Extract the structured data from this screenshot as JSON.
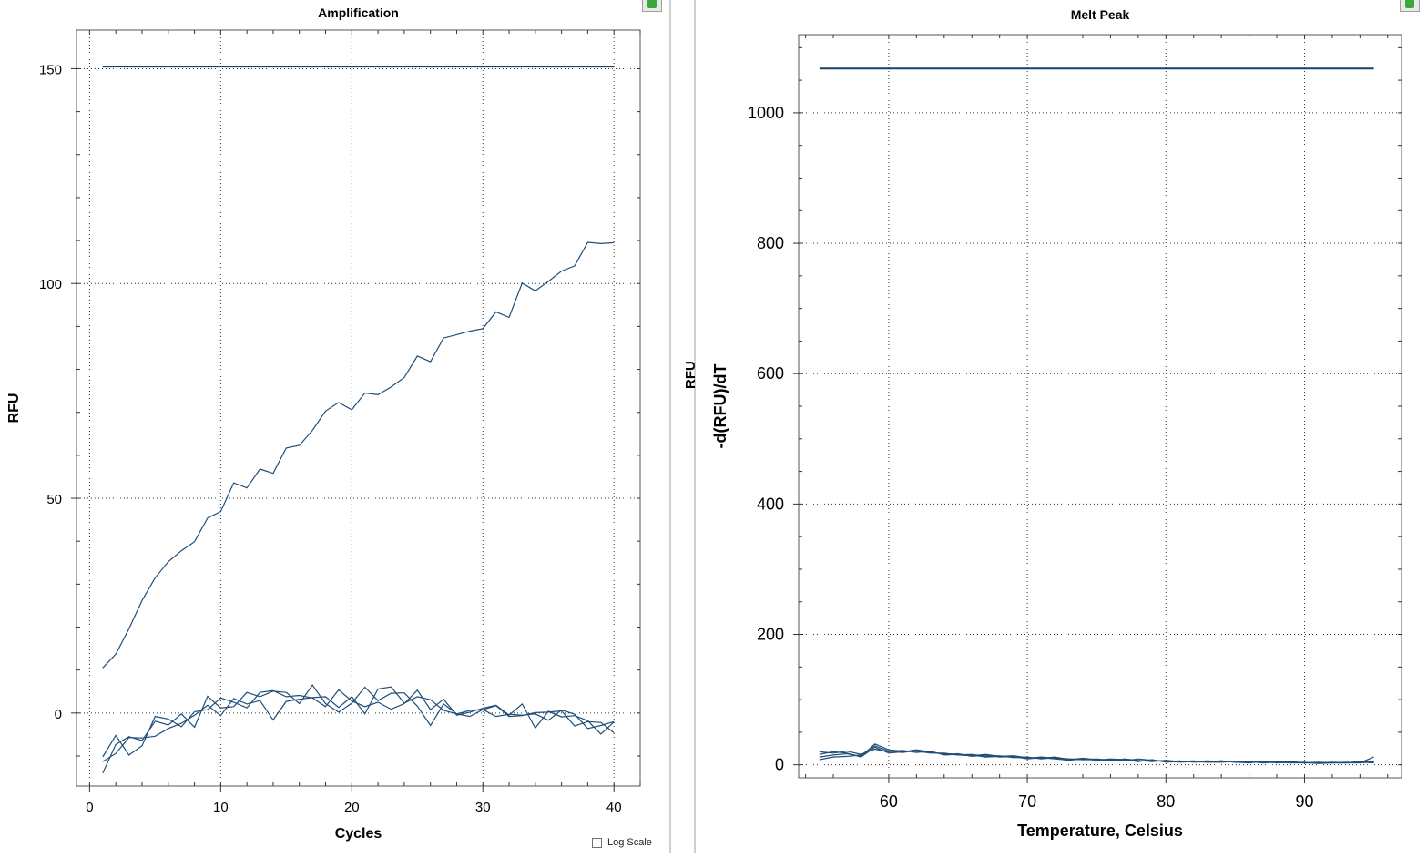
{
  "amplification": {
    "title": "Amplification",
    "xlabel": "Cycles",
    "ylabel": "RFU",
    "x_ticks": [
      "0",
      "10",
      "20",
      "30",
      "40"
    ],
    "y_ticks": [
      "0",
      "50",
      "100",
      "150"
    ],
    "log_scale_label": "Log Scale"
  },
  "melt_peak": {
    "title": "Melt Peak",
    "xlabel": "Temperature, Celsius",
    "ylabel": "-d(RFU)/dT",
    "x_ticks": [
      "60",
      "70",
      "80",
      "90"
    ],
    "y_ticks": [
      "0",
      "200",
      "400",
      "600",
      "800",
      "1000"
    ]
  },
  "splitter_text": "RFU",
  "line_color": "#1f4e79",
  "threshold_color": "#14436b",
  "chart_data": [
    {
      "type": "line",
      "title": "Amplification",
      "xlabel": "Cycles",
      "ylabel": "RFU",
      "xlim": [
        -1,
        42
      ],
      "ylim": [
        -17,
        159
      ],
      "grid": true,
      "threshold": {
        "value": 150.5,
        "x_range": [
          1,
          40
        ]
      },
      "series": [
        {
          "x": [
            1,
            2,
            3,
            4,
            5,
            6,
            7,
            8,
            9,
            10,
            11,
            12,
            13,
            14,
            15,
            16,
            17,
            18,
            19,
            20,
            21,
            22,
            23,
            24,
            25,
            26,
            27,
            28,
            29,
            30,
            31,
            32,
            33,
            34,
            35,
            36,
            37,
            38,
            39,
            40
          ],
          "values": [
            10.5,
            13.7,
            19.6,
            26.2,
            31.5,
            35.2,
            37.8,
            39.9,
            45.4,
            46.9,
            53.6,
            52.4,
            56.8,
            55.8,
            61.7,
            62.3,
            65.8,
            70.3,
            72.3,
            70.6,
            74.5,
            74.1,
            75.9,
            78.1,
            83.1,
            81.8,
            87.3,
            88.1,
            88.9,
            89.5,
            93.4,
            92.1,
            100.1,
            98.3,
            100.5,
            102.9,
            104.1,
            109.6,
            109.3,
            109.5
          ]
        },
        {
          "x": [
            1,
            2,
            3,
            4,
            5,
            6,
            7,
            8,
            9,
            10,
            11,
            12,
            13,
            14,
            15,
            16,
            17,
            18,
            19,
            20,
            21,
            22,
            23,
            24,
            25,
            26,
            27,
            28,
            29,
            30,
            31,
            32,
            33,
            34,
            35,
            36,
            37,
            38,
            39,
            40
          ],
          "values": [
            -10.2,
            -5.2,
            -9.8,
            -7.6,
            -0.8,
            -1.4,
            -3.2,
            0.3,
            0.8,
            3.5,
            2.5,
            1.2,
            4.8,
            5.2,
            3.8,
            4.1,
            3.5,
            1.5,
            5.4,
            2.8,
            1.5,
            2.5,
            0.9,
            2.2,
            5.3,
            0.8,
            3.2,
            -0.5,
            0.2,
            1.1,
            1.8,
            -0.5,
            2.1,
            -3.5,
            0.4,
            -0.9,
            -0.6,
            -1.8,
            -4.9,
            -2.1
          ]
        },
        {
          "x": [
            1,
            2,
            3,
            4,
            5,
            6,
            7,
            8,
            9,
            10,
            11,
            12,
            13,
            14,
            15,
            16,
            17,
            18,
            19,
            20,
            21,
            22,
            23,
            24,
            25,
            26,
            27,
            28,
            29,
            30,
            31,
            32,
            33,
            34,
            35,
            36,
            37,
            38,
            39,
            40
          ],
          "values": [
            -14.0,
            -7.3,
            -5.5,
            -6.4,
            -1.9,
            -2.8,
            -0.2,
            -3.3,
            3.9,
            1.2,
            1.5,
            4.8,
            3.8,
            5.1,
            4.8,
            2.2,
            6.5,
            2.2,
            0.2,
            2.3,
            6.0,
            2.9,
            4.6,
            4.7,
            1.6,
            -2.9,
            2.1,
            -0.2,
            0.6,
            0.8,
            1.7,
            -0.8,
            -0.6,
            0.1,
            0.2,
            0.5,
            -3.0,
            -2.0,
            -2.2,
            -4.6
          ]
        },
        {
          "x": [
            1,
            2,
            3,
            4,
            5,
            6,
            7,
            8,
            9,
            10,
            11,
            12,
            13,
            14,
            15,
            16,
            17,
            18,
            19,
            20,
            21,
            22,
            23,
            24,
            25,
            26,
            27,
            28,
            29,
            30,
            31,
            32,
            33,
            34,
            35,
            36,
            37,
            38,
            39,
            40
          ],
          "values": [
            -11.3,
            -9.4,
            -5.7,
            -5.8,
            -5.4,
            -3.6,
            -2.4,
            -0.5,
            1.8,
            -0.6,
            3.4,
            2.1,
            2.9,
            -1.6,
            2.7,
            3.2,
            3.6,
            3.8,
            1.3,
            3.8,
            -0.2,
            5.6,
            6.1,
            2.3,
            3.8,
            3.1,
            0.6,
            -0.2,
            -0.8,
            0.8,
            -0.8,
            -0.3,
            -0.5,
            -0.2,
            -1.7,
            0.7,
            -0.3,
            -3.6,
            -2.9,
            -2.0
          ]
        }
      ]
    },
    {
      "type": "line",
      "title": "Melt Peak",
      "xlabel": "Temperature, Celsius",
      "ylabel": "-d(RFU)/dT",
      "xlim": [
        53.5,
        97
      ],
      "ylim": [
        -20,
        1120
      ],
      "grid": true,
      "threshold": {
        "value": 1068,
        "x_range": [
          55,
          95
        ]
      },
      "series": [
        {
          "x": [
            55,
            56,
            57,
            58,
            59,
            60,
            61,
            62,
            63,
            64,
            65,
            66,
            67,
            68,
            69,
            70,
            71,
            72,
            73,
            74,
            75,
            76,
            77,
            78,
            79,
            80,
            81,
            82,
            83,
            84,
            85,
            86,
            87,
            88,
            89,
            90,
            91,
            92,
            93,
            94,
            95
          ],
          "values": [
            8,
            12,
            13,
            15,
            29,
            21,
            19,
            22,
            19,
            17,
            15,
            16,
            13,
            14,
            11,
            12,
            9,
            11,
            9,
            8,
            8,
            8,
            6,
            9,
            7,
            6,
            4,
            5,
            6,
            5,
            5,
            4,
            5,
            4,
            3,
            3,
            4,
            3,
            3,
            4,
            3
          ]
        },
        {
          "x": [
            55,
            56,
            57,
            58,
            59,
            60,
            61,
            62,
            63,
            64,
            65,
            66,
            67,
            68,
            69,
            70,
            71,
            72,
            73,
            74,
            75,
            76,
            77,
            78,
            79,
            80,
            81,
            82,
            83,
            84,
            85,
            86,
            87,
            88,
            89,
            90,
            91,
            92,
            93,
            94,
            95
          ],
          "values": [
            16,
            20,
            18,
            12,
            27,
            18,
            20,
            23,
            20,
            16,
            17,
            13,
            15,
            12,
            13,
            9,
            11,
            9,
            7,
            9,
            7,
            9,
            8,
            6,
            7,
            5,
            6,
            4,
            5,
            6,
            4,
            5,
            3,
            4,
            5,
            3,
            3,
            4,
            3,
            3,
            5
          ]
        },
        {
          "x": [
            55,
            56,
            57,
            58,
            59,
            60,
            61,
            62,
            63,
            64,
            65,
            66,
            67,
            68,
            69,
            70,
            71,
            72,
            73,
            74,
            75,
            76,
            77,
            78,
            79,
            80,
            81,
            82,
            83,
            84,
            85,
            86,
            87,
            88,
            89,
            90,
            91,
            92,
            93,
            94,
            95
          ],
          "values": [
            12,
            15,
            17,
            13,
            32,
            23,
            21,
            21,
            18,
            18,
            15,
            14,
            16,
            13,
            12,
            10,
            12,
            10,
            9,
            8,
            9,
            7,
            8,
            5,
            8,
            4,
            5,
            5,
            4,
            6,
            4,
            3,
            5,
            3,
            4,
            3,
            3,
            3,
            4,
            3,
            12
          ]
        },
        {
          "x": [
            55,
            56,
            57,
            58,
            59,
            60,
            61,
            62,
            63,
            64,
            65,
            66,
            67,
            68,
            69,
            70,
            71,
            72,
            73,
            74,
            75,
            76,
            77,
            78,
            79,
            80,
            81,
            82,
            83,
            84,
            85,
            86,
            87,
            88,
            89,
            90,
            91,
            92,
            93,
            94,
            95
          ],
          "values": [
            20,
            18,
            21,
            16,
            24,
            20,
            22,
            19,
            21,
            15,
            16,
            15,
            12,
            13,
            14,
            11,
            10,
            12,
            8,
            10,
            8,
            6,
            9,
            7,
            5,
            7,
            5,
            6,
            4,
            4,
            5,
            4,
            4,
            5,
            3,
            4,
            2,
            3,
            3,
            5,
            4
          ]
        }
      ]
    }
  ]
}
